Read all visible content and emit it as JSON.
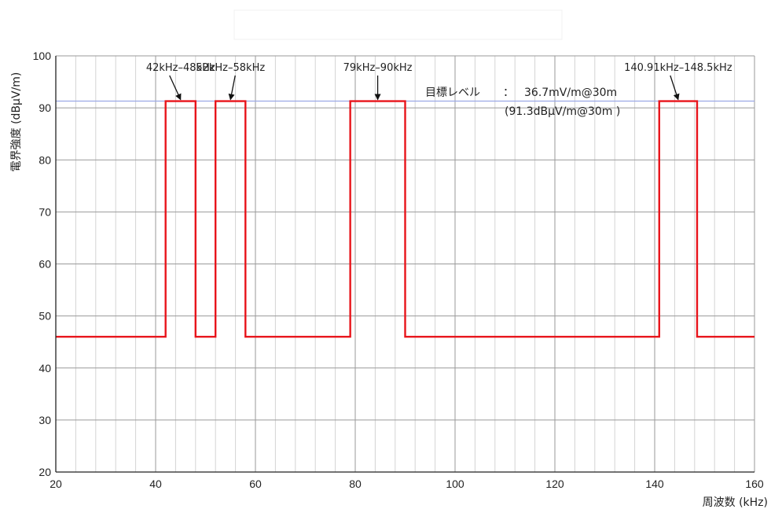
{
  "chart_data": {
    "type": "line",
    "title": "",
    "xlabel": "周波数 (kHz)",
    "ylabel": "電界強度 (dBμV/m)",
    "xlim": [
      20,
      160
    ],
    "ylim": [
      20,
      100
    ],
    "x_ticks": [
      "20",
      "40",
      "60",
      "80",
      "100",
      "120",
      "140",
      "160"
    ],
    "y_ticks": [
      "20",
      "30",
      "40",
      "50",
      "60",
      "70",
      "80",
      "90",
      "100"
    ],
    "grid": true,
    "series": [
      {
        "color": "#e8141b",
        "x": [
          20,
          42,
          42,
          48,
          48,
          52,
          52,
          58,
          58,
          79,
          79,
          90,
          90,
          140.91,
          140.91,
          148.5,
          148.5,
          160
        ],
        "y": [
          46,
          46,
          91.3,
          91.3,
          46,
          46,
          91.3,
          91.3,
          46,
          46,
          91.3,
          91.3,
          46,
          46,
          91.3,
          91.3,
          46,
          46
        ]
      }
    ],
    "reference_line": {
      "y": 91.3,
      "color": "#9aa8e6"
    },
    "annotations": [
      {
        "text": "42kHz–48kHz",
        "x": 45,
        "y": 91.3
      },
      {
        "text": "52kHz–58kHz",
        "x": 55,
        "y": 91.3
      },
      {
        "text": "79kHz–90kHz",
        "x": 84.5,
        "y": 91.3
      },
      {
        "text": "140.91kHz–148.5kHz",
        "x": 144.7,
        "y": 91.3
      }
    ],
    "target_note": {
      "label": "目標レベル",
      "separator": "：",
      "value": "36.7mV/m@30m",
      "value_db": "(91.3dBμV/m@30m )"
    }
  }
}
